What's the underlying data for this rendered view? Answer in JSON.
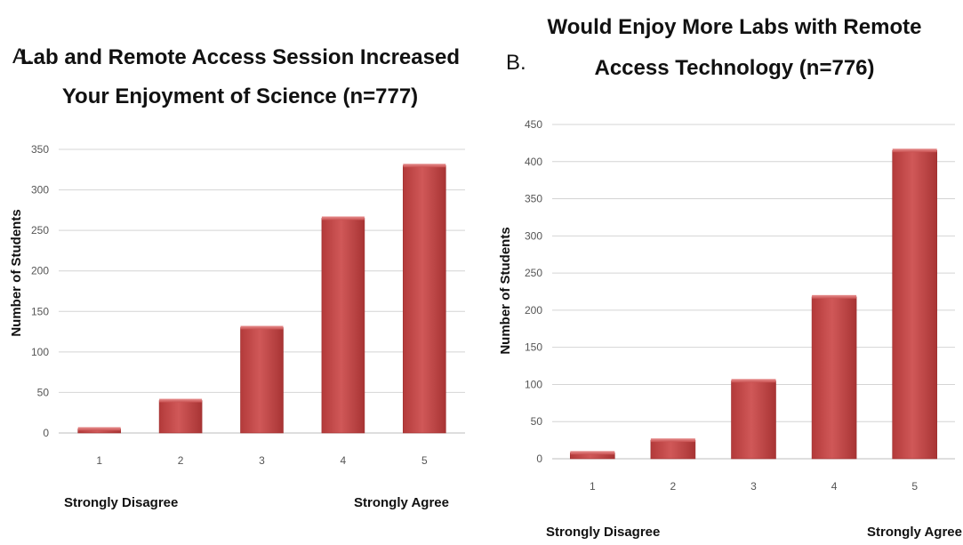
{
  "chart_data": [
    {
      "type": "bar",
      "panel_label": "A.",
      "title_lines": [
        "Lab and Remote Access Session Increased",
        "Your Enjoyment of Science (n=777)"
      ],
      "ylabel": "Number of Students",
      "xlabel": "",
      "categories": [
        "1",
        "2",
        "3",
        "4",
        "5"
      ],
      "values": [
        5,
        40,
        130,
        265,
        330
      ],
      "ylim": [
        0,
        350
      ],
      "yticks": [
        0,
        50,
        100,
        150,
        200,
        250,
        300,
        350
      ],
      "x_anchor_left": "Strongly Disagree",
      "x_anchor_right": "Strongly Agree",
      "grid": true,
      "bar_color": "#c94a4a"
    },
    {
      "type": "bar",
      "panel_label": "B.",
      "title_lines": [
        "Would Enjoy More Labs with Remote",
        "Access Technology (n=776)"
      ],
      "ylabel": "Number of Students",
      "xlabel": "",
      "categories": [
        "1",
        "2",
        "3",
        "4",
        "5"
      ],
      "values": [
        8,
        25,
        105,
        218,
        415
      ],
      "ylim": [
        0,
        450
      ],
      "yticks": [
        0,
        50,
        100,
        150,
        200,
        250,
        300,
        350,
        400,
        450
      ],
      "x_anchor_left": "Strongly Disagree",
      "x_anchor_right": "Strongly Agree",
      "grid": true,
      "bar_color": "#c94a4a"
    }
  ]
}
